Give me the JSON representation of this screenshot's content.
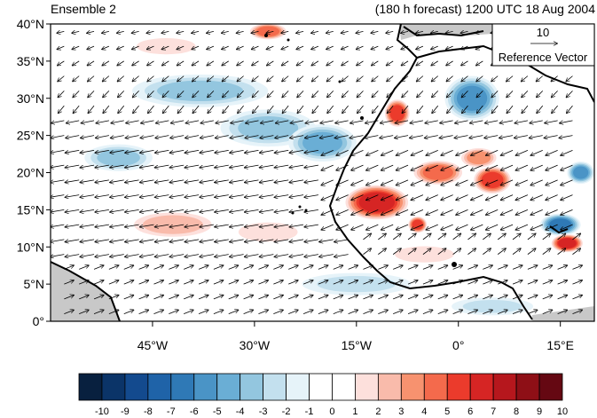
{
  "title_left": "Ensemble 2",
  "title_right": "(180 h forecast) 1200 UTC 18 Aug 2004",
  "reference_vector": {
    "value": "10",
    "label": "Reference Vector"
  },
  "lat_labels": [
    "40°N",
    "35°N",
    "30°N",
    "25°N",
    "20°N",
    "15°N",
    "10°N",
    "5°N",
    "0°"
  ],
  "lon_labels": [
    "45°W",
    "30°W",
    "15°W",
    "0°",
    "15°E"
  ],
  "colorbar": {
    "labels": [
      "-10",
      "-9",
      "-8",
      "-7",
      "-6",
      "-5",
      "-4",
      "-3",
      "-2",
      "-1",
      "0",
      "1",
      "2",
      "3",
      "4",
      "5",
      "6",
      "7",
      "8",
      "9",
      "10"
    ],
    "colors": [
      "#08203f",
      "#0b3468",
      "#134a8e",
      "#1f63a8",
      "#2f79b6",
      "#4a94c6",
      "#6aaed5",
      "#93c6df",
      "#c3e0ee",
      "#e6f3f9",
      "#ffffff",
      "#ffffff",
      "#fde0dc",
      "#f9bbab",
      "#f7926f",
      "#f46a4c",
      "#eb3b2c",
      "#d62524",
      "#b6171d",
      "#8e0f16",
      "#650812"
    ]
  },
  "land_color": "#c8c8c8",
  "field": {
    "lon_range": [
      -60,
      20
    ],
    "lat_range": [
      0,
      40
    ],
    "anomaly_blobs": [
      {
        "lon": -38,
        "lat": 31,
        "rlon": 10,
        "rlat": 2.2,
        "value": -3
      },
      {
        "lon": -28,
        "lat": 26,
        "rlon": 7,
        "rlat": 2.5,
        "value": -3
      },
      {
        "lon": -20,
        "lat": 24,
        "rlon": 5,
        "rlat": 2.5,
        "value": -4
      },
      {
        "lon": -50,
        "lat": 22,
        "rlon": 5,
        "rlat": 1.8,
        "value": -3
      },
      {
        "lon": -43,
        "lat": 37,
        "rlon": 6,
        "rlat": 1.5,
        "value": 2
      },
      {
        "lon": -28,
        "lat": 39,
        "rlon": 3,
        "rlat": 1.2,
        "value": 5
      },
      {
        "lon": -42,
        "lat": 13,
        "rlon": 7,
        "rlat": 2,
        "value": 3
      },
      {
        "lon": -28,
        "lat": 12,
        "rlon": 6,
        "rlat": 1.8,
        "value": 2
      },
      {
        "lon": -12,
        "lat": 16,
        "rlon": 5,
        "rlat": 2.5,
        "value": 7
      },
      {
        "lon": -6,
        "lat": 13,
        "rlon": 1.5,
        "rlat": 1.2,
        "value": 6
      },
      {
        "lon": -3,
        "lat": 20,
        "rlon": 4,
        "rlat": 1.8,
        "value": 5
      },
      {
        "lon": 5,
        "lat": 19,
        "rlon": 3,
        "rlat": 2,
        "value": 6
      },
      {
        "lon": 2,
        "lat": 30,
        "rlon": 4,
        "rlat": 3,
        "value": -5
      },
      {
        "lon": -9,
        "lat": 28,
        "rlon": 2,
        "rlat": 2,
        "value": 6
      },
      {
        "lon": 3,
        "lat": 22,
        "rlon": 3,
        "rlat": 1.5,
        "value": 4
      },
      {
        "lon": 15,
        "lat": 13,
        "rlon": 3,
        "rlat": 1.5,
        "value": -6
      },
      {
        "lon": 16,
        "lat": 10.5,
        "rlon": 2.5,
        "rlat": 1.3,
        "value": 7
      },
      {
        "lon": 18,
        "lat": 20,
        "rlon": 2,
        "rlat": 1.5,
        "value": -5
      },
      {
        "lon": -15,
        "lat": 5,
        "rlon": 8,
        "rlat": 1.5,
        "value": -2
      },
      {
        "lon": 5,
        "lat": 2,
        "rlon": 6,
        "rlat": 1.2,
        "value": -2
      },
      {
        "lon": -5,
        "lat": 9,
        "rlon": 6,
        "rlat": 1.5,
        "value": 2
      }
    ]
  }
}
